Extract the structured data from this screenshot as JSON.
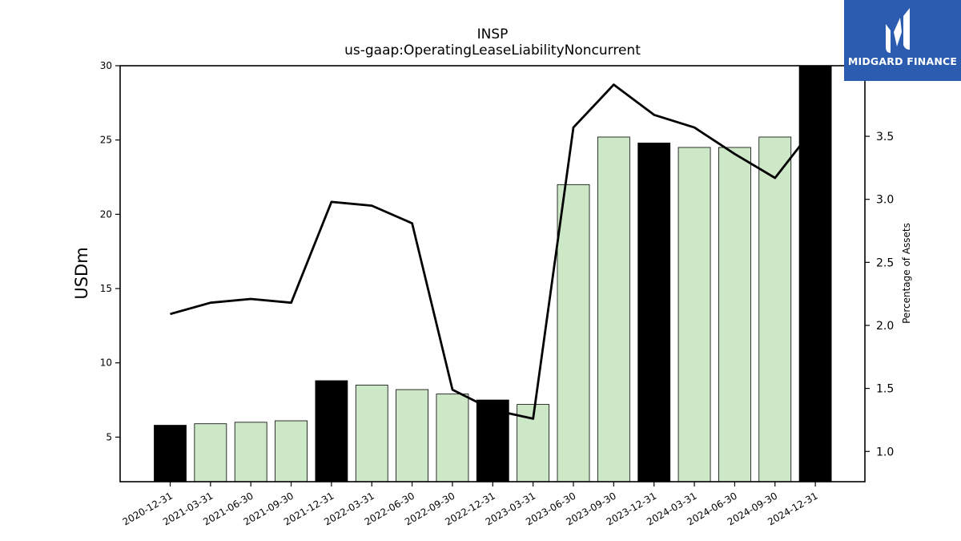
{
  "chart_data": {
    "type": "bar",
    "title": "INSP",
    "subtitle": "us-gaap:OperatingLeaseLiabilityNoncurrent",
    "ylabel": "USDm",
    "y2label": "Percentage of Assets",
    "categories": [
      "2020-12-31",
      "2021-03-31",
      "2021-06-30",
      "2021-09-30",
      "2021-12-31",
      "2022-03-31",
      "2022-06-30",
      "2022-09-30",
      "2022-12-31",
      "2023-03-31",
      "2023-06-30",
      "2023-09-30",
      "2023-12-31",
      "2024-03-31",
      "2024-06-30",
      "2024-09-30",
      "2024-12-31"
    ],
    "series": [
      {
        "type": "bar",
        "axis": "left",
        "values": [
          5.8,
          5.9,
          6.0,
          6.1,
          8.8,
          8.5,
          8.2,
          7.9,
          7.5,
          7.2,
          22.0,
          25.2,
          24.8,
          24.5,
          24.5,
          25.2,
          30.2
        ],
        "highlight": [
          true,
          false,
          false,
          false,
          true,
          false,
          false,
          false,
          true,
          false,
          false,
          false,
          true,
          false,
          false,
          false,
          true
        ]
      },
      {
        "type": "line",
        "axis": "right",
        "values": [
          2.09,
          2.18,
          2.21,
          2.18,
          2.98,
          2.95,
          2.81,
          1.49,
          1.33,
          1.26,
          3.57,
          3.91,
          3.67,
          3.57,
          3.36,
          3.17,
          3.58
        ]
      }
    ],
    "ylim": [
      2.0,
      30.0
    ],
    "y2lim": [
      0.76,
      4.06
    ],
    "yticks": [
      5,
      10,
      15,
      20,
      25,
      30
    ],
    "y2ticks": [
      "1.0",
      "1.5",
      "2.0",
      "2.5",
      "3.0",
      "3.5"
    ],
    "colors": {
      "bar": "#cde8c7",
      "highlight": "#000000",
      "line": "#000000",
      "edge": "#000000"
    },
    "grid": false,
    "legend": "none"
  },
  "logo": {
    "text": "MIDGARD FINANCE",
    "background": "#2b5cb0"
  }
}
